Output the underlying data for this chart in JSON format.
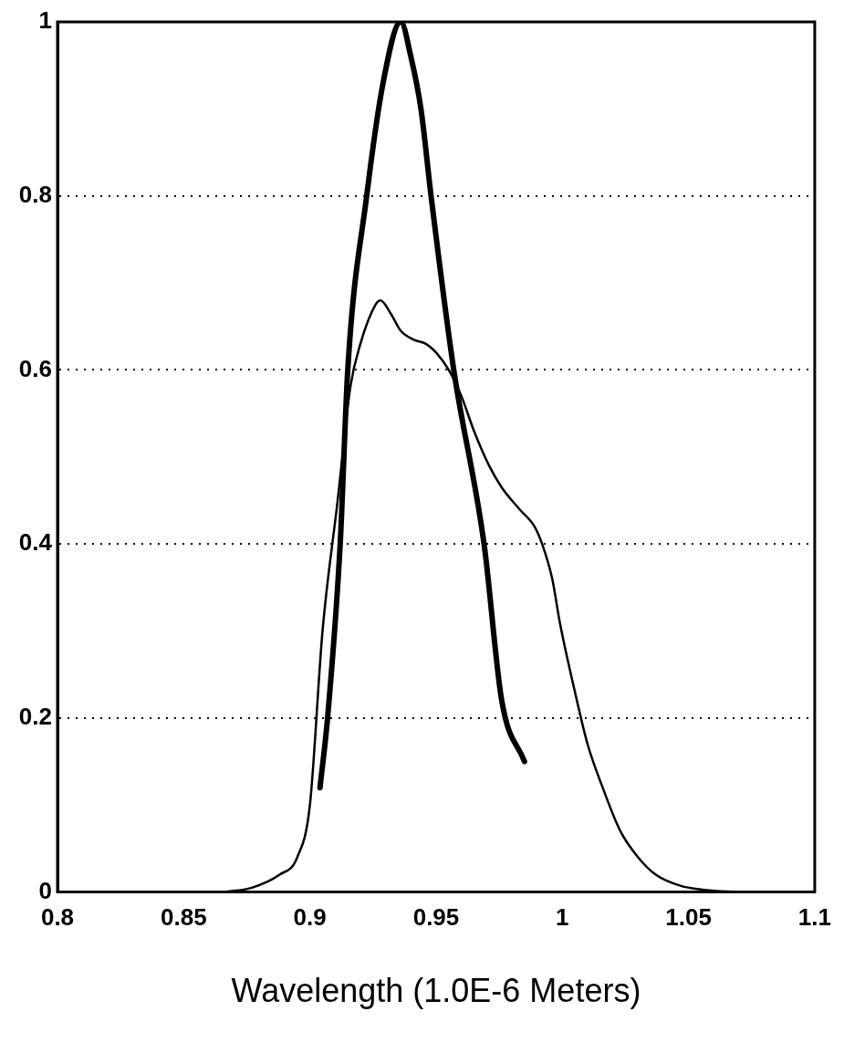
{
  "chart_data": {
    "type": "line",
    "xlabel": "Wavelength (1.0E-6 Meters)",
    "xlim": [
      0.8,
      1.1
    ],
    "xticks": [
      0.8,
      0.85,
      0.9,
      0.95,
      1,
      1.05,
      1.1
    ],
    "ylim": [
      0,
      1
    ],
    "yticks": [
      0,
      0.2,
      0.4,
      0.6,
      0.8,
      1
    ],
    "grid": "y",
    "legend": false,
    "marker": "none",
    "line_style": "solid",
    "series": [
      {
        "color": "#000000",
        "x": [
          0.904,
          0.907,
          0.912,
          0.915,
          0.9225,
          0.929,
          0.936,
          0.94,
          0.944,
          0.948,
          0.957,
          0.969,
          0.976,
          0.985
        ],
        "values": [
          0.12,
          0.2,
          0.4,
          0.6,
          0.8,
          0.93,
          1,
          0.96,
          0.9,
          0.8,
          0.6,
          0.4,
          0.22,
          0.15
        ]
      },
      {
        "color": "#000000",
        "x": [
          0.866,
          0.877,
          0.888,
          0.895,
          0.9,
          0.905,
          0.911,
          0.916,
          0.92,
          0.926,
          0.928,
          0.932,
          0.936,
          0.941,
          0.946,
          0.95,
          0.955,
          0.96,
          0.965,
          0.971,
          0.976,
          0.983,
          0.989,
          0.992,
          0.996,
          0.999,
          1.005,
          1.01,
          1.016,
          1.023,
          1.03,
          1.037,
          1.047,
          1.058,
          1.069
        ],
        "values": [
          0,
          0.005,
          0.02,
          0.04,
          0.1,
          0.3,
          0.45,
          0.58,
          0.63,
          0.675,
          0.68,
          0.665,
          0.645,
          0.635,
          0.63,
          0.62,
          0.6,
          0.57,
          0.53,
          0.49,
          0.465,
          0.44,
          0.42,
          0.4,
          0.36,
          0.31,
          0.23,
          0.17,
          0.12,
          0.07,
          0.04,
          0.02,
          0.007,
          0.002,
          0
        ]
      }
    ]
  }
}
